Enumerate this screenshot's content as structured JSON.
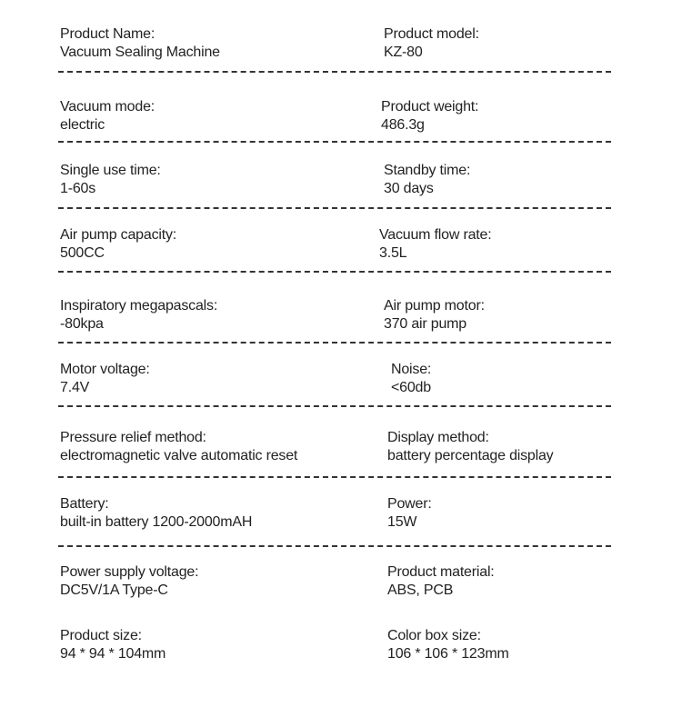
{
  "specs": [
    {
      "left": {
        "label": "Product Name:",
        "value": "Vacuum Sealing Machine"
      },
      "right": {
        "label": "Product model:",
        "value": "KZ-80"
      }
    },
    {
      "left": {
        "label": "Vacuum mode:",
        "value": "electric"
      },
      "right": {
        "label": "Product weight:",
        "value": "486.3g"
      }
    },
    {
      "left": {
        "label": "Single use time:",
        "value": "1-60s"
      },
      "right": {
        "label": "Standby time:",
        "value": "30 days"
      }
    },
    {
      "left": {
        "label": "Air pump capacity:",
        "value": "500CC"
      },
      "right": {
        "label": "Vacuum flow rate:",
        "value": "3.5L"
      }
    },
    {
      "left": {
        "label": "Inspiratory megapascals:",
        "value": "-80kpa"
      },
      "right": {
        "label": "Air pump motor:",
        "value": "370 air pump"
      }
    },
    {
      "left": {
        "label": "Motor voltage:",
        "value": "7.4V"
      },
      "right": {
        "label": "Noise:",
        "value": "<60db"
      }
    },
    {
      "left": {
        "label": "Pressure relief method:",
        "value": "electromagnetic valve automatic reset"
      },
      "right": {
        "label": "Display method:",
        "value": "battery percentage display"
      }
    },
    {
      "left": {
        "label": "Battery:",
        "value": "built-in battery 1200-2000mAH"
      },
      "right": {
        "label": "Power:",
        "value": "15W"
      }
    },
    {
      "left": {
        "label": "Power supply voltage:",
        "value": "DC5V/1A Type-C"
      },
      "right": {
        "label": "Product material:",
        "value": "ABS, PCB"
      }
    },
    {
      "left": {
        "label": "Product size:",
        "value": "94 * 94 * 104mm"
      },
      "right": {
        "label": "Color box size:",
        "value": "106 * 106 * 123mm"
      }
    }
  ]
}
